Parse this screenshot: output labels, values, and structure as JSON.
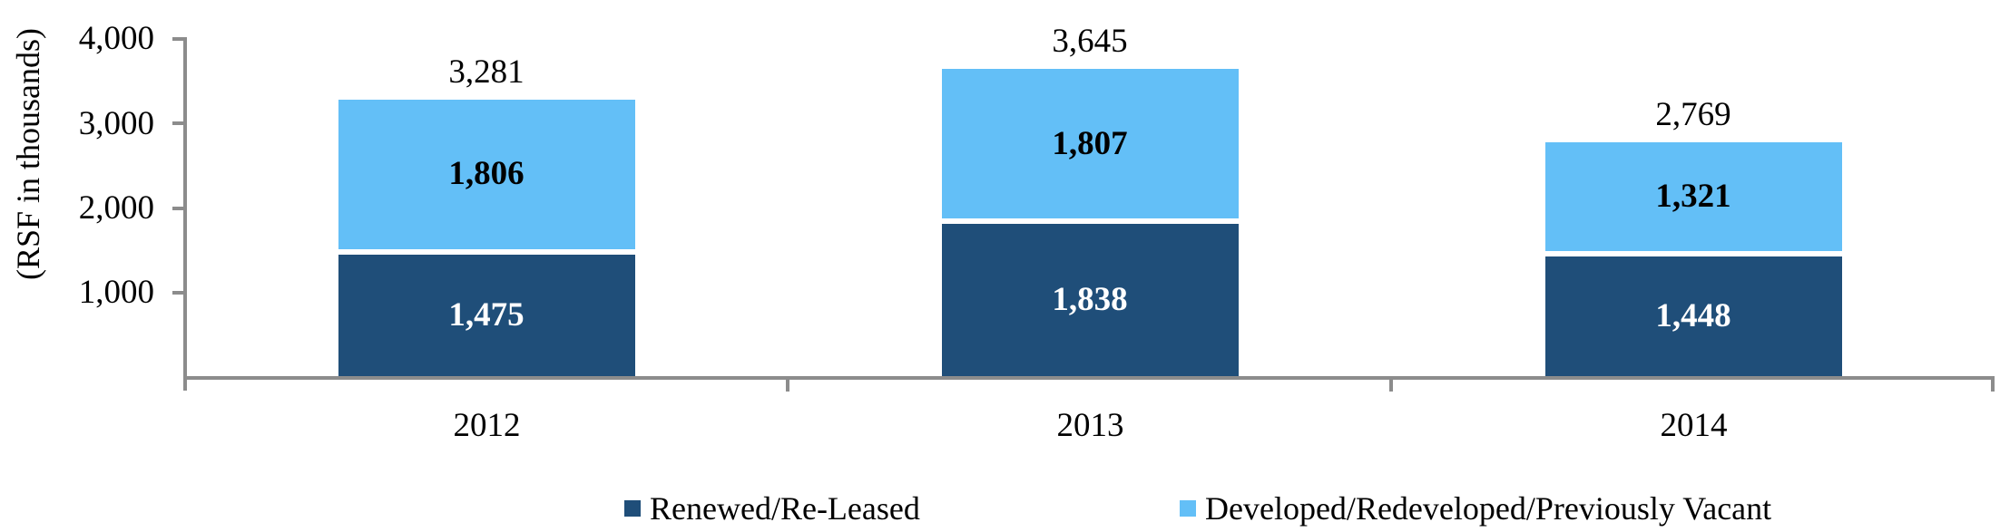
{
  "chart_data": {
    "type": "bar",
    "stacked": true,
    "title": "",
    "ylabel": "(RSF in thousands)",
    "categories": [
      "2012",
      "2013",
      "2014"
    ],
    "series": [
      {
        "name": "Renewed/Re-Leased",
        "color": "#1F4E79",
        "label_color": "#FFFFFF",
        "values": [
          1475,
          1838,
          1448
        ],
        "value_labels": [
          "1,475",
          "1,838",
          "1,448"
        ]
      },
      {
        "name": "Developed/Redeveloped/Previously Vacant",
        "color": "#63BFF7",
        "label_color": "#000000",
        "values": [
          1806,
          1807,
          1321
        ],
        "value_labels": [
          "1,806",
          "1,807",
          "1,321"
        ]
      }
    ],
    "totals": [
      3281,
      3645,
      2769
    ],
    "total_labels": [
      "3,281",
      "3,645",
      "2,769"
    ],
    "ylim": [
      0,
      4000
    ],
    "yticks": [
      4000,
      3000,
      2000,
      1000
    ],
    "ytick_labels": [
      "4,000",
      "3,000",
      "2,000",
      "1,000"
    ],
    "grid": false,
    "legend_position": "bottom",
    "axis_color": "#8C8C8C",
    "segment_gap_color": "#FFFFFF",
    "background_color": "#FFFFFF"
  }
}
